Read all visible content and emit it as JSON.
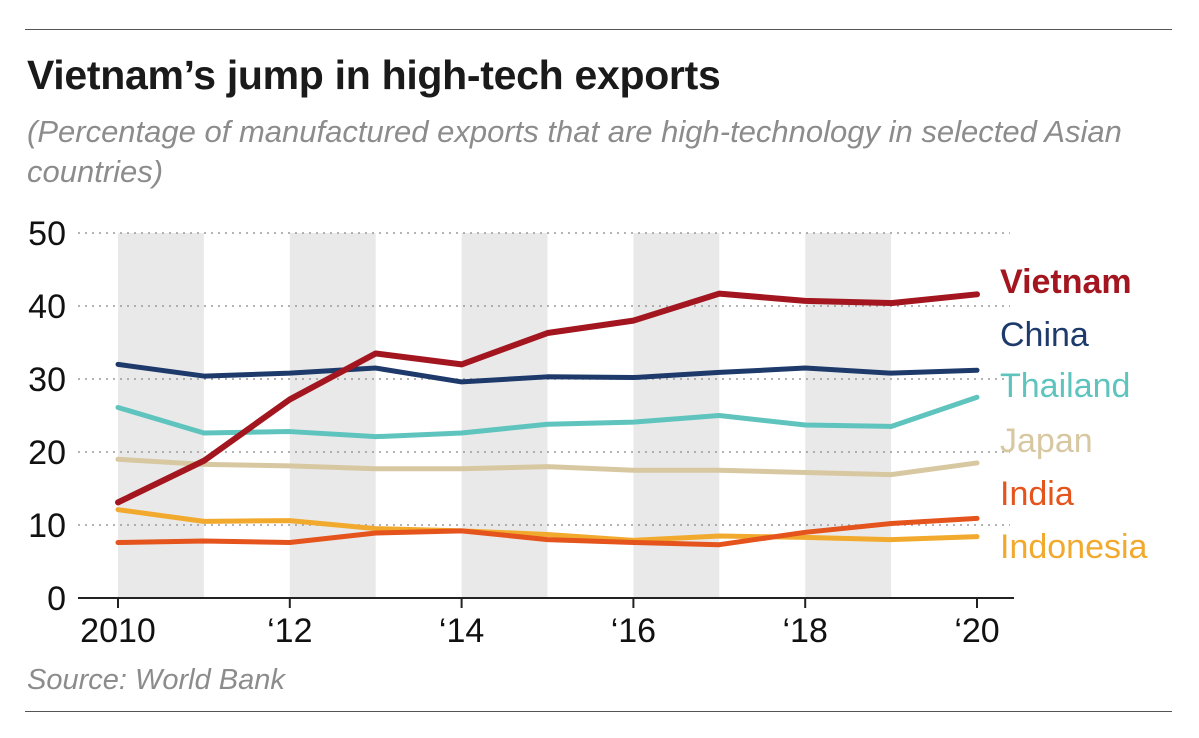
{
  "header": {
    "title": "Vietnam’s jump in high-tech exports",
    "subtitle": "(Percentage of manufactured exports that are high-technology in selected Asian countries)"
  },
  "footer": {
    "source": "Source: World Bank"
  },
  "chart_data": {
    "type": "line",
    "title": "Vietnam’s jump in high-tech exports",
    "subtitle": "(Percentage of manufactured exports that are high-technology in selected Asian countries)",
    "xlabel": "",
    "ylabel": "",
    "x": [
      2010,
      2011,
      2012,
      2013,
      2014,
      2015,
      2016,
      2017,
      2018,
      2019,
      2020
    ],
    "xlim": [
      2010,
      2020
    ],
    "ylim": [
      0,
      50
    ],
    "yticks": [
      0,
      10,
      20,
      30,
      40,
      50
    ],
    "yticklabels": [
      "0",
      "10",
      "20",
      "30",
      "40",
      "50"
    ],
    "xticks": [
      2010,
      2012,
      2014,
      2016,
      2018,
      2020
    ],
    "xticklabels": [
      "2010",
      "‘12",
      "‘14",
      "‘16",
      "‘18",
      "‘20"
    ],
    "grid": "horizontal dotted",
    "shaded_bands": [
      "2010-2011",
      "2012-2013",
      "2014-2015",
      "2016-2017",
      "2018-2019"
    ],
    "legend_position": "right",
    "series": [
      {
        "name": "Vietnam",
        "color": "#a3161f",
        "bold": true,
        "values": [
          13.1,
          18.8,
          27.2,
          33.5,
          32.0,
          36.3,
          38.0,
          41.7,
          40.7,
          40.4,
          41.6
        ]
      },
      {
        "name": "China",
        "color": "#1d3a6b",
        "bold": false,
        "values": [
          32.0,
          30.4,
          30.8,
          31.5,
          29.6,
          30.3,
          30.2,
          30.9,
          31.5,
          30.8,
          31.2
        ]
      },
      {
        "name": "Thailand",
        "color": "#5fc4be",
        "bold": false,
        "values": [
          26.1,
          22.6,
          22.8,
          22.1,
          22.6,
          23.8,
          24.1,
          25.0,
          23.7,
          23.5,
          27.5
        ]
      },
      {
        "name": "Japan",
        "color": "#d8c8a2",
        "bold": false,
        "values": [
          19.0,
          18.3,
          18.1,
          17.7,
          17.7,
          18.0,
          17.5,
          17.5,
          17.2,
          16.9,
          18.5
        ]
      },
      {
        "name": "India",
        "color": "#e4541c",
        "bold": false,
        "values": [
          7.6,
          7.8,
          7.6,
          8.9,
          9.2,
          8.0,
          7.6,
          7.3,
          9.0,
          10.2,
          10.9
        ]
      },
      {
        "name": "Indonesia",
        "color": "#f1aa2e",
        "bold": false,
        "values": [
          12.1,
          10.5,
          10.6,
          9.5,
          9.2,
          8.7,
          7.9,
          8.5,
          8.3,
          8.0,
          8.4
        ]
      }
    ]
  }
}
